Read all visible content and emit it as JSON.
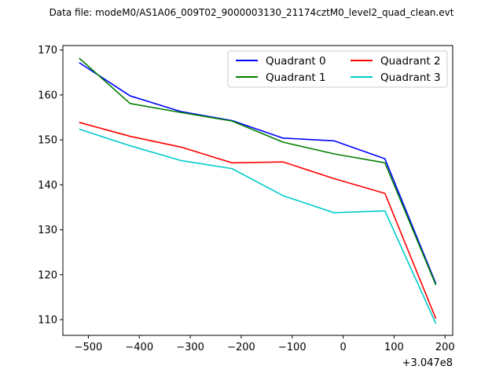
{
  "chart_data": {
    "type": "line",
    "title": "Data file: modeM0/AS1A06_009T02_9000003130_21174cztM0_level2_quad_clean.evt",
    "xlabel": "",
    "ylabel": "",
    "x_offset_label": "+3.047e8",
    "x": [
      -518,
      -418,
      -318,
      -218,
      -118,
      -18,
      82,
      182
    ],
    "xlim": [
      -550,
      215
    ],
    "ylim": [
      106.5,
      171
    ],
    "x_ticks": [
      -500,
      -400,
      -300,
      -200,
      -100,
      0,
      100,
      200
    ],
    "x_tick_labels": [
      "−500",
      "−400",
      "−300",
      "−200",
      "−100",
      "0",
      "100",
      "200"
    ],
    "y_ticks": [
      110,
      120,
      130,
      140,
      150,
      160,
      170
    ],
    "y_tick_labels": [
      "110",
      "120",
      "130",
      "140",
      "150",
      "160",
      "170"
    ],
    "grid": false,
    "legend_placement": "top-right",
    "series": [
      {
        "name": "Quadrant 0",
        "color": "#0000ff",
        "values": [
          167.2,
          159.8,
          156.3,
          154.3,
          150.4,
          149.8,
          145.8,
          118.0
        ]
      },
      {
        "name": "Quadrant 1",
        "color": "#008000",
        "values": [
          168.2,
          158.1,
          156.1,
          154.2,
          149.5,
          146.9,
          144.9,
          117.7
        ]
      },
      {
        "name": "Quadrant 2",
        "color": "#ff0000",
        "values": [
          153.9,
          150.8,
          148.4,
          144.9,
          145.1,
          141.4,
          138.1,
          110.2
        ]
      },
      {
        "name": "Quadrant 3",
        "color": "#00cccc",
        "values": [
          152.4,
          148.7,
          145.4,
          143.6,
          137.6,
          133.8,
          134.2,
          109.1
        ]
      }
    ]
  }
}
